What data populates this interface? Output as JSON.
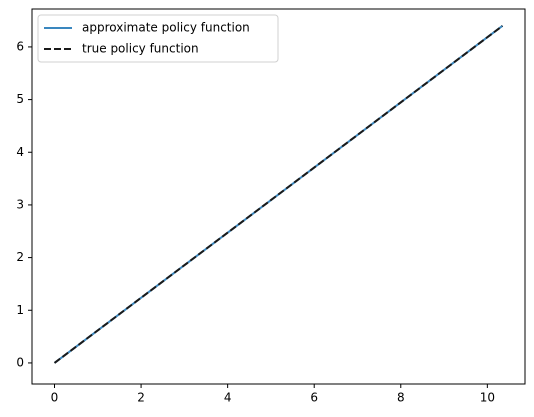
{
  "chart_data": {
    "type": "line",
    "x": [
      0,
      10.35
    ],
    "series": [
      {
        "name": "approximate policy function",
        "color": "#3a87bf",
        "style": "solid",
        "values": [
          0,
          6.4
        ]
      },
      {
        "name": "true policy function",
        "color": "#1a1a1a",
        "style": "dashed",
        "values": [
          0,
          6.4
        ]
      }
    ],
    "xlim": [
      -0.52,
      10.87
    ],
    "ylim": [
      -0.4,
      6.72
    ],
    "xticks": [
      0,
      2,
      4,
      6,
      8,
      10
    ],
    "yticks": [
      0,
      1,
      2,
      3,
      4,
      5,
      6
    ],
    "grid": false,
    "legend": "upper-left"
  }
}
